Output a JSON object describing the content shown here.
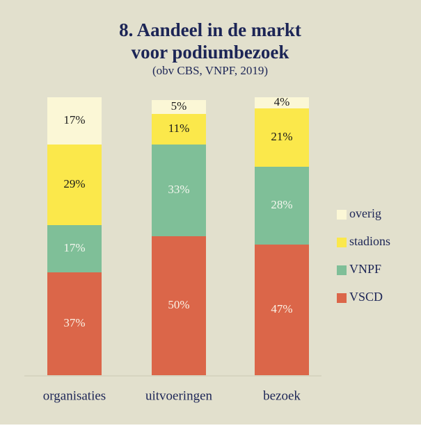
{
  "chart_data": {
    "type": "stacked_bar",
    "title": "8. Aandeel in de markt voor podiumbezoek",
    "subtitle": "(obv CBS, VNPF, 2019)",
    "categories": [
      "organisaties",
      "uitvoeringen",
      "bezoek"
    ],
    "series": [
      {
        "name": "VSCD",
        "color": "#db6649",
        "label_color": "#fbf3e6",
        "values": [
          37,
          50,
          47
        ],
        "value_labels": [
          "37%",
          "50%",
          "47%"
        ]
      },
      {
        "name": "VNPF",
        "color": "#7fbf98",
        "label_color": "#f4f6ee",
        "values": [
          17,
          33,
          28
        ],
        "value_labels": [
          "17%",
          "33%",
          "28%"
        ]
      },
      {
        "name": "stadions",
        "color": "#fbe84b",
        "label_color": "#1a1a1a",
        "values": [
          29,
          11,
          21
        ],
        "value_labels": [
          "29%",
          "11%",
          "21%"
        ]
      },
      {
        "name": "overig",
        "color": "#fbf7d6",
        "label_color": "#1a1a1a",
        "values": [
          17,
          5,
          4
        ],
        "value_labels": [
          "17%",
          "5%",
          "4%"
        ]
      }
    ],
    "ylim": [
      0,
      100
    ],
    "legend": "right"
  }
}
